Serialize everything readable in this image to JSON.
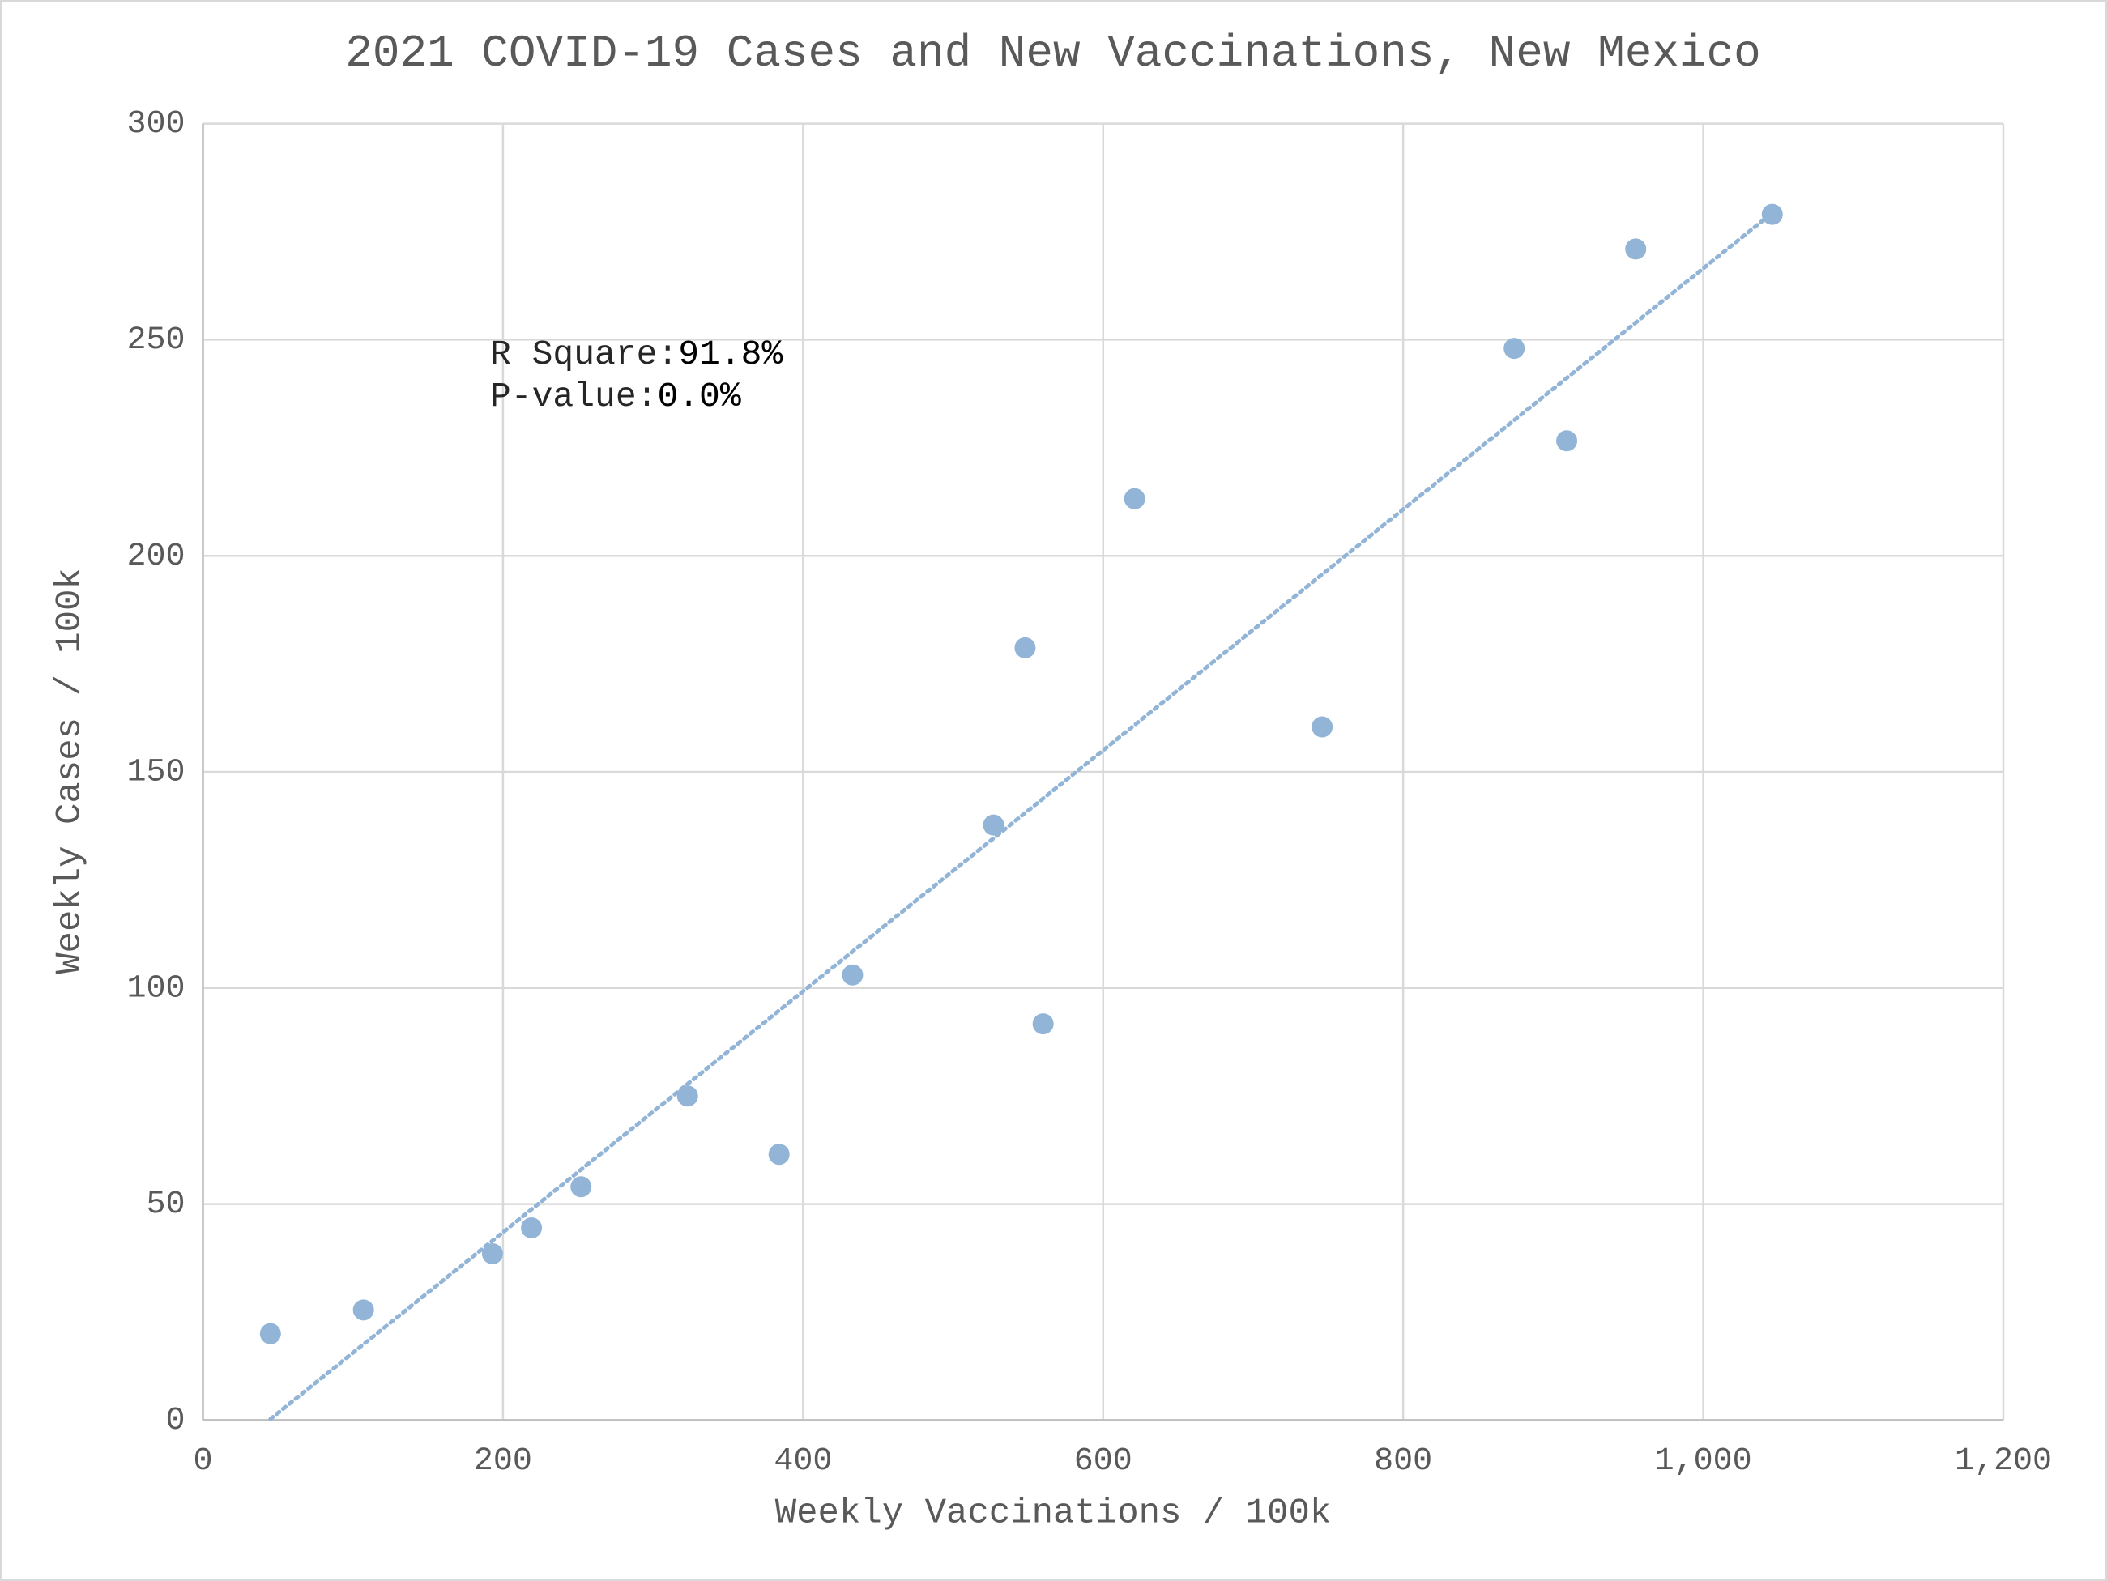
{
  "chart_data": {
    "type": "scatter",
    "title": "2021 COVID-19 Cases and New Vaccinations, New Mexico",
    "x_label": "Weekly Vaccinations / 100k",
    "y_label": "Weekly Cases / 100k",
    "color": "#92b4d6",
    "trendline": true,
    "grid": true,
    "annotations": [
      {
        "label": "R Square:",
        "value": "91.8%"
      },
      {
        "label": "P-value:",
        "value": "0.0%"
      }
    ],
    "x": [
      45,
      107,
      193,
      219,
      252,
      323,
      384,
      433,
      527,
      548,
      560,
      621,
      746,
      874,
      909,
      955,
      1046
    ],
    "values": [
      20,
      25.5,
      38.5,
      44.5,
      54,
      75,
      61.5,
      103,
      137.7,
      178.7,
      91.7,
      213.2,
      160.4,
      248,
      226.6,
      271,
      279
    ],
    "xlim": [
      0,
      1200
    ],
    "xticks": [
      0,
      200,
      400,
      600,
      800,
      {
        "value": 1000,
        "label": "1,000"
      },
      {
        "value": 1200,
        "label": "1,200"
      }
    ],
    "ylim": [
      0,
      300
    ],
    "yticks": [
      0,
      50,
      100,
      150,
      200,
      250,
      300
    ]
  }
}
